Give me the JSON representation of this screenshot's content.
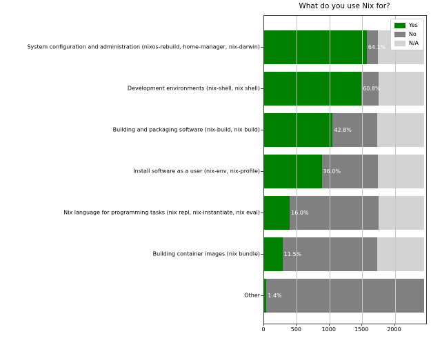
{
  "chart_data": {
    "type": "bar",
    "orientation": "horizontal",
    "stacked": true,
    "title": "What do you use Nix for?",
    "xlabel": "",
    "ylabel": "",
    "xlim": [
      0,
      2480
    ],
    "xticks": [
      0,
      500,
      1000,
      1500,
      2000
    ],
    "grid": true,
    "legend_position": "upper right",
    "bar_total": 2450,
    "categories": [
      "System configuration and administration (nixos-rebuild, home-manager, nix-darwin)",
      "Development environments (nix-shell, nix shell)",
      "Building and packaging software (nix-build, nix build)",
      "Install software as a user (nix-env, nix-profile)",
      "Nix language for programming tasks (nix repl, nix-instantiate, nix eval)",
      "Building container images (nix bundle)",
      "Other"
    ],
    "series": [
      {
        "name": "Yes",
        "color": "#008000",
        "values": [
          1570,
          1490,
          1049,
          882,
          392,
          282,
          34
        ]
      },
      {
        "name": "No",
        "color": "#808080",
        "values": [
          170,
          265,
          678,
          856,
          1357,
          1445,
          2416
        ]
      },
      {
        "name": "N/A",
        "color": "#d3d3d3",
        "values": [
          710,
          695,
          723,
          712,
          701,
          723,
          0
        ]
      }
    ],
    "bar_labels": [
      "64.1%",
      "60.8%",
      "42.8%",
      "36.0%",
      "16.0%",
      "11.5%",
      "1.4%"
    ],
    "legend": [
      {
        "label": "Yes",
        "color": "#008000"
      },
      {
        "label": "No",
        "color": "#808080"
      },
      {
        "label": "N/A",
        "color": "#d3d3d3"
      }
    ]
  }
}
